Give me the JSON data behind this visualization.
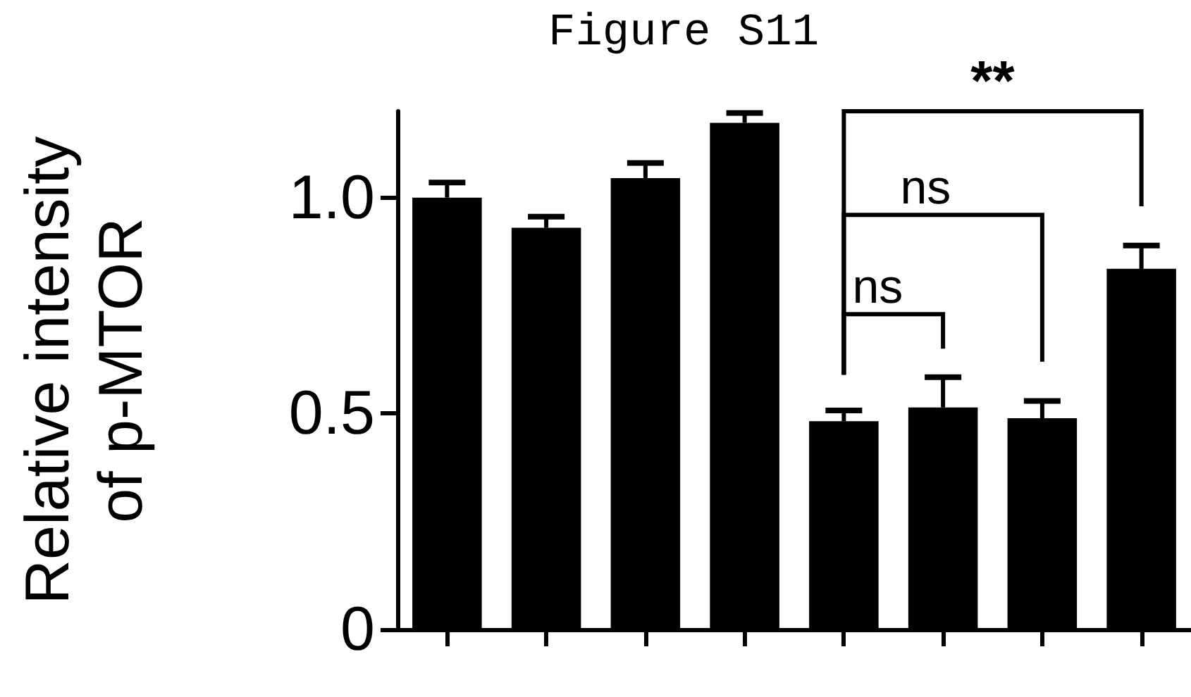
{
  "chart_data": {
    "type": "bar",
    "title": "Figure S11",
    "ylabel": "Relative intensity\nof p-MTOR",
    "categories": [
      null,
      null,
      null,
      null,
      null,
      null,
      null,
      null
    ],
    "values": [
      1.0,
      0.93,
      1.045,
      1.173,
      0.482,
      0.514,
      0.489,
      0.835
    ],
    "errors": [
      0.035,
      0.026,
      0.035,
      0.023,
      0.025,
      0.07,
      0.04,
      0.054
    ],
    "color": "#000000",
    "ylim": [
      0,
      1.2
    ],
    "yticks": [
      0,
      {
        "value": 0.5,
        "label": "0.5"
      },
      {
        "value": 1,
        "label": "1.0"
      }
    ],
    "grid": false,
    "annotations": [
      "ns",
      "ns",
      "**"
    ]
  }
}
